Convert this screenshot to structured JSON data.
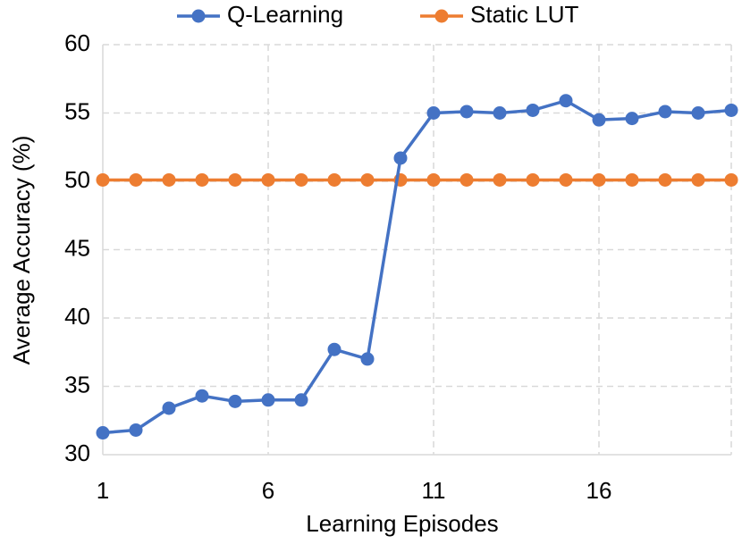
{
  "chart_data": {
    "type": "line",
    "xlabel": "Learning Episodes",
    "ylabel": "Average Accuracy (%)",
    "x": [
      1,
      2,
      3,
      4,
      5,
      6,
      7,
      8,
      9,
      10,
      11,
      12,
      13,
      14,
      15,
      16,
      17,
      18,
      19,
      20
    ],
    "series": [
      {
        "name": "Q-Learning",
        "color": "#4472c4",
        "values": [
          31.6,
          31.8,
          33.4,
          34.3,
          33.9,
          34.0,
          34.0,
          37.7,
          37.0,
          51.7,
          55.0,
          55.1,
          55.0,
          55.2,
          55.9,
          54.5,
          54.6,
          55.1,
          55.0,
          55.2
        ]
      },
      {
        "name": "Static LUT",
        "color": "#ed7d31",
        "values": [
          50.1,
          50.1,
          50.1,
          50.1,
          50.1,
          50.1,
          50.1,
          50.1,
          50.1,
          50.1,
          50.1,
          50.1,
          50.1,
          50.1,
          50.1,
          50.1,
          50.1,
          50.1,
          50.1,
          50.1
        ]
      }
    ],
    "xlim": [
      1,
      20
    ],
    "xticks": [
      1,
      6,
      11,
      16
    ],
    "ylim": [
      30,
      60
    ],
    "yticks": [
      30,
      35,
      40,
      45,
      50,
      55,
      60
    ],
    "grid": true,
    "legend": "top"
  }
}
